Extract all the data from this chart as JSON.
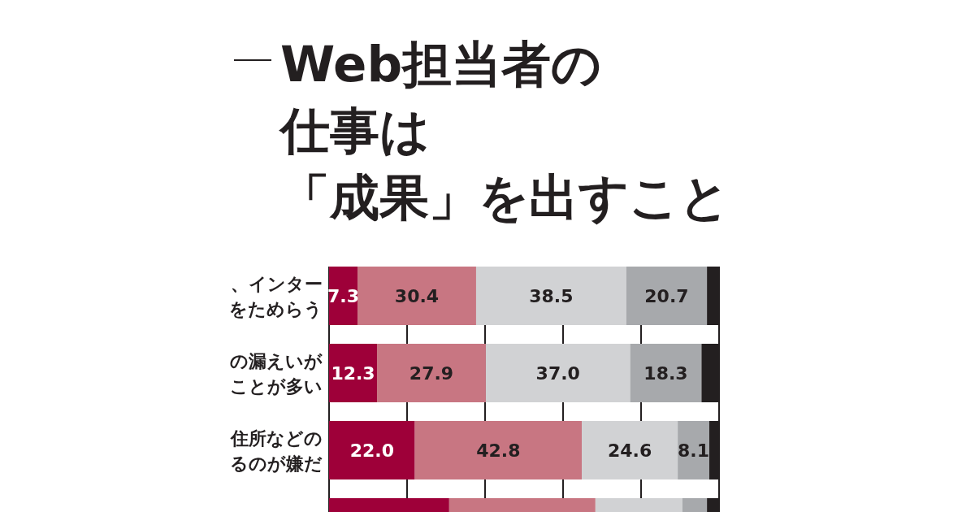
{
  "chart_data": {
    "type": "bar",
    "orientation": "horizontal",
    "stacked": true,
    "title": "Web担当者の仕事は「成果」を出すこと",
    "categories": [
      "、インターをためらう",
      "の漏えいがことが多い",
      "住所などのるのが嫌だ",
      null
    ],
    "series": [
      {
        "color": "#9e0039",
        "values": [
          7.3,
          12.3,
          22.0,
          30.8
        ],
        "value_labels": [
          "7.3",
          "12.3",
          "22.0",
          null
        ]
      },
      {
        "color": "#c87682",
        "values": [
          30.4,
          27.9,
          42.8,
          37.5
        ],
        "value_labels": [
          "30.4",
          "27.9",
          "42.8",
          null
        ]
      },
      {
        "color": "#d1d2d4",
        "values": [
          38.5,
          37.0,
          24.6,
          22.3
        ],
        "value_labels": [
          "38.5",
          "37.0",
          "24.6",
          null
        ]
      },
      {
        "color": "#a7a9ac",
        "values": [
          20.7,
          18.3,
          8.1,
          6.3
        ],
        "value_labels": [
          "20.7",
          "18.3",
          "8.1",
          null
        ]
      },
      {
        "color": "#231f20",
        "values": [
          3.1,
          4.5,
          2.5,
          3.1
        ]
      }
    ],
    "xlim": [
      0,
      100
    ],
    "xticks": [
      {
        "value": 0,
        "label": null
      },
      {
        "value": 20,
        "label": null
      },
      {
        "value": 40,
        "label": null
      },
      {
        "value": 60,
        "label": null
      },
      {
        "value": 80,
        "label": null
      },
      {
        "value": 100,
        "label": null
      }
    ],
    "grid": "x",
    "tick_labels": "y"
  }
}
